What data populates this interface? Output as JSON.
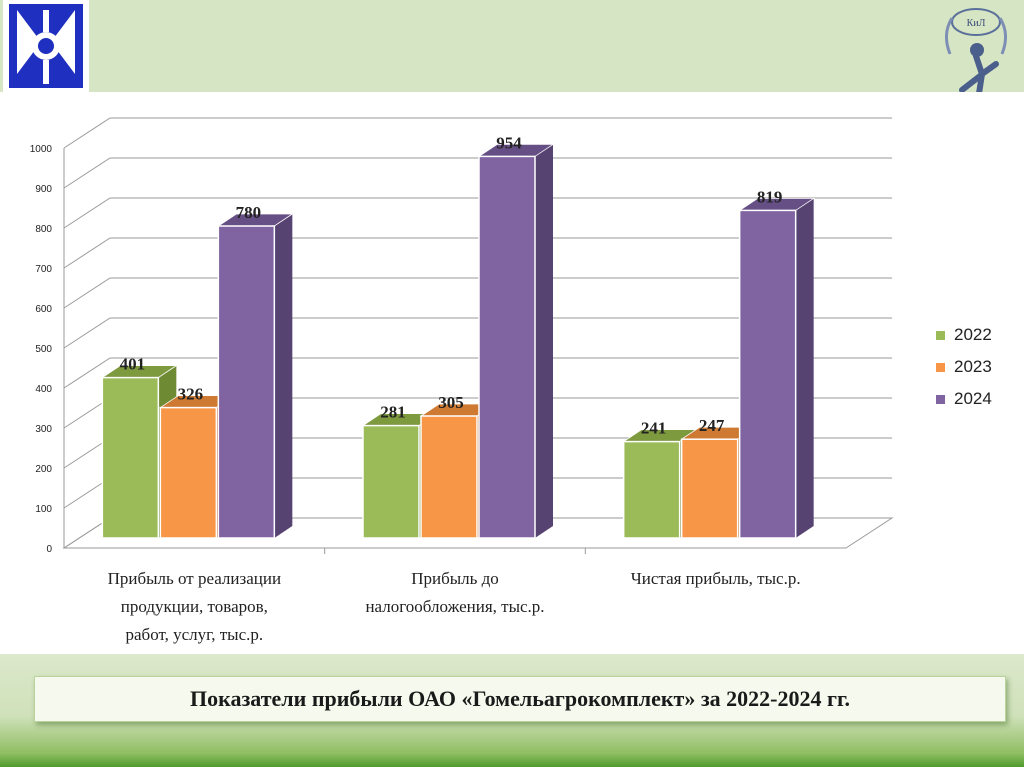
{
  "caption": "Показатели прибыли ОАО «Гомельагрокомплект» за 2022-2024 гг.",
  "emblem_text": "КиЛ",
  "chart_data": {
    "type": "bar",
    "categories": [
      [
        "Прибыль от реализации",
        "продукции, товаров,",
        "работ, услуг, тыс.р."
      ],
      [
        "Прибыль до",
        "налогообложения, тыс.р."
      ],
      [
        "Чистая прибыль, тыс.р."
      ]
    ],
    "series": [
      {
        "name": "2022",
        "values": [
          401,
          281,
          241
        ],
        "color": "#9bbb59",
        "top": "#7d9a3f",
        "side": "#6e8a33"
      },
      {
        "name": "2023",
        "values": [
          326,
          305,
          247
        ],
        "color": "#f79646",
        "top": "#cf7a33",
        "side": "#c06a2a"
      },
      {
        "name": "2024",
        "values": [
          780,
          954,
          819
        ],
        "color": "#8064a2",
        "top": "#664f85",
        "side": "#574372"
      }
    ],
    "ylim": [
      0,
      1000
    ],
    "yticks": [
      0,
      100,
      200,
      300,
      400,
      500,
      600,
      700,
      800,
      900,
      1000
    ],
    "grid": true,
    "legend_position": "right",
    "style": "3d-clustered-column"
  }
}
